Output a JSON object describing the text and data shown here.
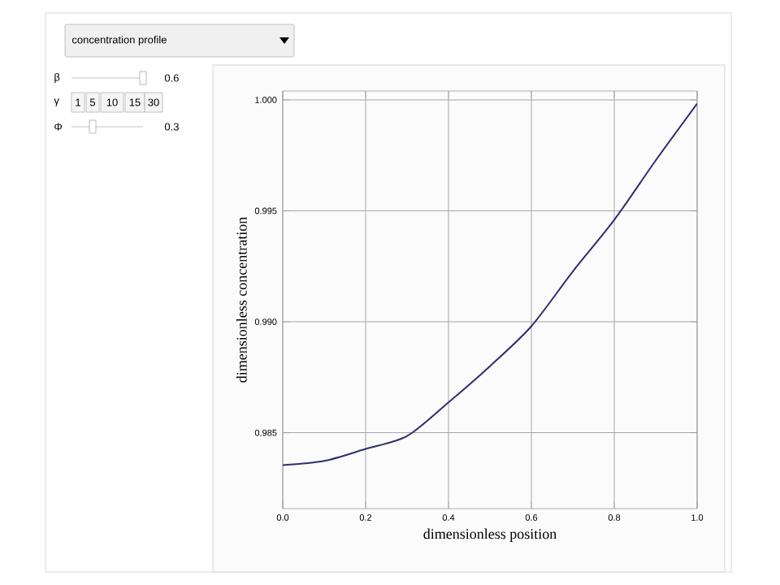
{
  "chart_data": {
    "type": "line",
    "xlabel": "dimensionless position",
    "ylabel": "dimensionless concentration",
    "annotations": [
      "concentration profile",
      "β",
      "0.6",
      "γ",
      "1",
      "5",
      "10",
      "15",
      "30",
      "Φ",
      "0.3"
    ],
    "x": [
      0,
      0.1,
      0.2,
      0.3,
      0.4,
      0.5,
      0.6,
      0.7,
      0.8,
      0.9,
      1.0
    ],
    "series": [
      {
        "color": "#2e2e6e",
        "values": [
          0.98354,
          0.98373,
          0.98427,
          0.98485,
          0.98637,
          0.988,
          0.9898,
          0.99227,
          0.99459,
          0.99727,
          0.99983
        ]
      }
    ],
    "xlim": [
      0,
      1
    ],
    "ylim": [
      0.98158,
      1.0004
    ],
    "xticks": [
      {
        "value": 0,
        "label": "0.0"
      },
      {
        "value": 0.2,
        "label": "0.2"
      },
      {
        "value": 0.4,
        "label": "0.4"
      },
      {
        "value": 0.6,
        "label": "0.6"
      },
      {
        "value": 0.8,
        "label": "0.8"
      },
      {
        "value": 1,
        "label": "1.0"
      }
    ],
    "yticks": [
      0.985,
      {
        "value": 0.99,
        "label": "0.990"
      },
      0.995,
      {
        "value": 1,
        "label": "1.000"
      }
    ],
    "grid": true,
    "marker": "none",
    "line_style": "solid"
  }
}
